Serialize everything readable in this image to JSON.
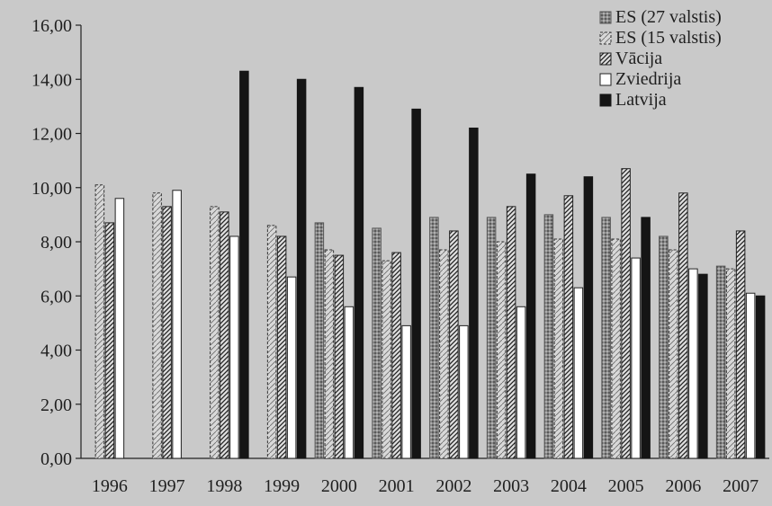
{
  "chart_data": {
    "type": "bar",
    "categories": [
      "1996",
      "1997",
      "1998",
      "1999",
      "2000",
      "2001",
      "2002",
      "2003",
      "2004",
      "2005",
      "2006",
      "2007"
    ],
    "ylim": [
      0,
      16
    ],
    "yticks": [
      "0,00",
      "2,00",
      "4,00",
      "6,00",
      "8,00",
      "10,00",
      "12,00",
      "14,00",
      "16,00"
    ],
    "grid": false,
    "legend_position": "top-right",
    "series": [
      {
        "name": "ES (27 valstis)",
        "pattern": "dotted-gray",
        "values": [
          null,
          null,
          null,
          null,
          8.7,
          8.5,
          8.9,
          8.9,
          9.0,
          8.9,
          8.2,
          7.1
        ]
      },
      {
        "name": "ES (15 valstis)",
        "pattern": "dashed-outline",
        "values": [
          10.1,
          9.8,
          9.3,
          8.6,
          7.7,
          7.3,
          7.7,
          8.0,
          8.1,
          8.1,
          7.7,
          7.0
        ]
      },
      {
        "name": "Vācija",
        "pattern": "diagonal-hatch",
        "values": [
          8.7,
          9.3,
          9.1,
          8.2,
          7.5,
          7.6,
          8.4,
          9.3,
          9.7,
          10.7,
          9.8,
          8.4
        ]
      },
      {
        "name": "Zviedrija",
        "pattern": "white",
        "values": [
          9.6,
          9.9,
          8.2,
          6.7,
          5.6,
          4.9,
          4.9,
          5.6,
          6.3,
          7.4,
          7.0,
          6.1
        ]
      },
      {
        "name": "Latvija",
        "pattern": "black",
        "values": [
          null,
          null,
          14.3,
          14.0,
          13.7,
          12.9,
          12.2,
          10.5,
          10.4,
          8.9,
          6.8,
          6.0
        ]
      }
    ]
  }
}
